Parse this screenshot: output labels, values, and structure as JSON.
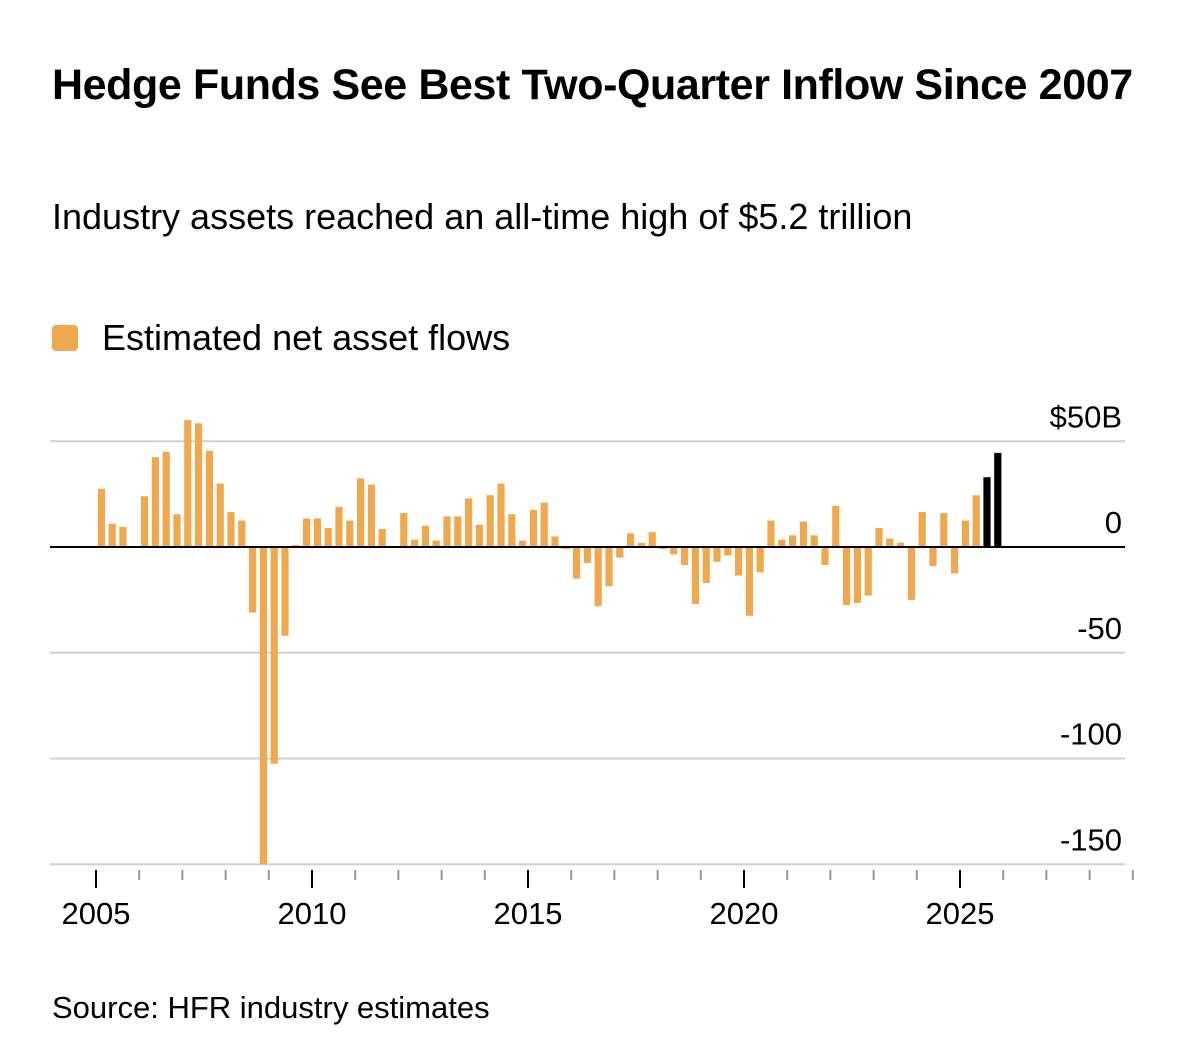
{
  "title": "Hedge Funds See Best Two-Quarter Inflow Since 2007",
  "subtitle": "Industry assets reached an all-time high of $5.2 trillion",
  "legend": {
    "label": "Estimated net asset flows",
    "color": "#F0A84E"
  },
  "source": "Source: HFR industry estimates",
  "colors": {
    "bar": "#F0A84E",
    "highlight": "#000000",
    "grid": "#D0D0D0",
    "zero_line": "#000000"
  },
  "chart_data": {
    "type": "bar",
    "title": "Hedge Funds See Best Two-Quarter Inflow Since 2007",
    "subtitle": "Industry assets reached an all-time high of $5.2 trillion",
    "xlabel": "",
    "ylabel": "",
    "x_ticks": [
      "2005",
      "2010",
      "2015",
      "2020",
      "2025"
    ],
    "x_range": [
      2005,
      2029
    ],
    "ylim": [
      -150,
      50
    ],
    "y_ticks": [
      50,
      0,
      -50,
      -100,
      -150
    ],
    "y_tick_labels": [
      "$50B",
      "0",
      "-50",
      "-100",
      "-150"
    ],
    "grid": true,
    "legend_position": "top-left",
    "series": [
      {
        "name": "Estimated net asset flows",
        "x": [
          "2005 Q1",
          "2005 Q2",
          "2005 Q3",
          "2005 Q4",
          "2006 Q1",
          "2006 Q2",
          "2006 Q3",
          "2006 Q4",
          "2007 Q1",
          "2007 Q2",
          "2007 Q3",
          "2007 Q4",
          "2008 Q1",
          "2008 Q2",
          "2008 Q3",
          "2008 Q4",
          "2009 Q1",
          "2009 Q2",
          "2009 Q3",
          "2009 Q4",
          "2010 Q1",
          "2010 Q2",
          "2010 Q3",
          "2010 Q4",
          "2011 Q1",
          "2011 Q2",
          "2011 Q3",
          "2011 Q4",
          "2012 Q1",
          "2012 Q2",
          "2012 Q3",
          "2012 Q4",
          "2013 Q1",
          "2013 Q2",
          "2013 Q3",
          "2013 Q4",
          "2014 Q1",
          "2014 Q2",
          "2014 Q3",
          "2014 Q4",
          "2015 Q1",
          "2015 Q2",
          "2015 Q3",
          "2015 Q4",
          "2016 Q1",
          "2016 Q2",
          "2016 Q3",
          "2016 Q4",
          "2017 Q1",
          "2017 Q2",
          "2017 Q3",
          "2017 Q4",
          "2018 Q1",
          "2018 Q2",
          "2018 Q3",
          "2018 Q4",
          "2019 Q1",
          "2019 Q2",
          "2019 Q3",
          "2019 Q4",
          "2020 Q1",
          "2020 Q2",
          "2020 Q3",
          "2020 Q4",
          "2021 Q1",
          "2021 Q2",
          "2021 Q3",
          "2021 Q4",
          "2022 Q1",
          "2022 Q2",
          "2022 Q3",
          "2022 Q4",
          "2023 Q1",
          "2023 Q2",
          "2023 Q3",
          "2023 Q4",
          "2024 Q1",
          "2024 Q2",
          "2024 Q3",
          "2024 Q4",
          "2025 Q1",
          "2025 Q2",
          "2025 Q3",
          "2025 Q4"
        ],
        "values": [
          27.5,
          11,
          9.5,
          -0.5,
          24,
          42.5,
          45,
          15.5,
          60,
          58.5,
          45.5,
          30,
          16.5,
          12.5,
          -31,
          -150,
          -102.5,
          -42,
          1,
          13.5,
          13.5,
          9,
          19,
          12.5,
          32.5,
          29.5,
          8.5,
          0.5,
          16,
          3.5,
          10,
          3,
          14.5,
          14.5,
          23,
          10.5,
          24.5,
          30,
          15.5,
          3,
          17.5,
          21,
          5,
          -1,
          -15,
          -7.5,
          -28,
          -18.5,
          -5,
          6.5,
          2,
          7,
          -1,
          -3.5,
          -8.5,
          -27,
          -17,
          -7,
          -4,
          -13.5,
          -32.5,
          -12,
          12.5,
          3.5,
          5.5,
          12,
          5.5,
          -8.5,
          19.5,
          -27.5,
          -26.5,
          -23,
          9,
          4,
          2,
          -25,
          16.5,
          -9,
          16,
          -12.5,
          12.5,
          24.5,
          33,
          44.5
        ],
        "highlight": [
          false,
          false,
          false,
          false,
          false,
          false,
          false,
          false,
          false,
          false,
          false,
          false,
          false,
          false,
          false,
          false,
          false,
          false,
          false,
          false,
          false,
          false,
          false,
          false,
          false,
          false,
          false,
          false,
          false,
          false,
          false,
          false,
          false,
          false,
          false,
          false,
          false,
          false,
          false,
          false,
          false,
          false,
          false,
          false,
          false,
          false,
          false,
          false,
          false,
          false,
          false,
          false,
          false,
          false,
          false,
          false,
          false,
          false,
          false,
          false,
          false,
          false,
          false,
          false,
          false,
          false,
          false,
          false,
          false,
          false,
          false,
          false,
          false,
          false,
          false,
          false,
          false,
          false,
          false,
          false,
          false,
          false,
          true,
          true
        ]
      }
    ]
  }
}
